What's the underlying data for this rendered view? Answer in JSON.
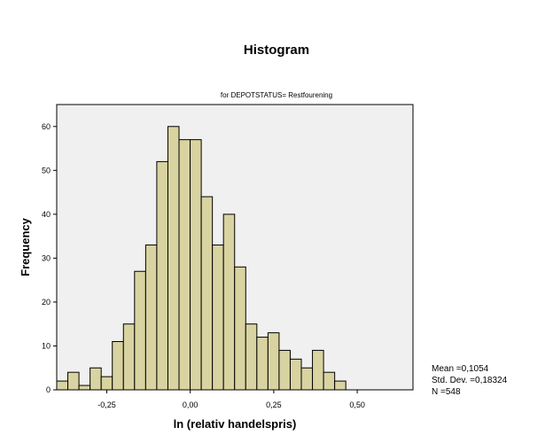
{
  "chart_data": {
    "type": "bar",
    "title": "Histogram",
    "subtitle": "for DEPOTSTATUS= Restfourening",
    "xlabel": "ln (relativ handelspris)",
    "ylabel": "Frequency",
    "bin_width": 0.0333,
    "bin_start": -0.4,
    "xlim": [
      -0.4,
      0.667
    ],
    "ylim": [
      0,
      65
    ],
    "x_ticks": [
      -0.25,
      0.0,
      0.25,
      0.5
    ],
    "x_tick_labels": [
      "-0,25",
      "0,00",
      "0,25",
      "0,50"
    ],
    "y_ticks": [
      0,
      10,
      20,
      30,
      40,
      50,
      60
    ],
    "y_tick_labels": [
      "0",
      "10",
      "20",
      "30",
      "40",
      "50",
      "60"
    ],
    "values": [
      2,
      4,
      1,
      5,
      3,
      11,
      15,
      27,
      33,
      52,
      60,
      57,
      57,
      44,
      33,
      40,
      28,
      15,
      12,
      13,
      9,
      7,
      5,
      9,
      4,
      2
    ],
    "grid": false,
    "stats": {
      "mean": "Mean =0,1054",
      "std": "Std. Dev. =0,18324",
      "n": "N =548"
    },
    "colors": {
      "bar_fill": "#d8d3a0",
      "bar_stroke": "#000000",
      "plot_bg": "#f0f0f0"
    }
  }
}
